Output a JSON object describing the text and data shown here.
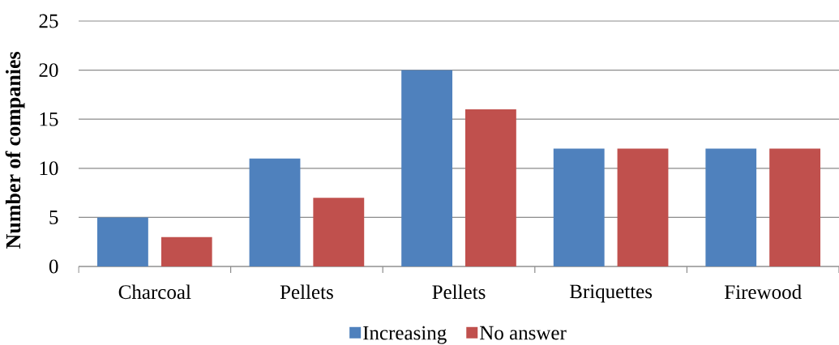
{
  "chart_data": {
    "type": "bar",
    "ylabel": "Number of companies",
    "categories": [
      "Charcoal",
      "Pellets",
      "Pellets",
      "Briquettes",
      "Firewood"
    ],
    "series": [
      {
        "name": "Increasing",
        "color": "#4f81bd",
        "values": [
          5,
          11,
          20,
          12,
          12
        ]
      },
      {
        "name": "No answer",
        "color": "#c0504d",
        "values": [
          3,
          7,
          16,
          12,
          12
        ]
      }
    ],
    "ylim": [
      0,
      25
    ],
    "yticks": [
      0,
      5,
      10,
      15,
      20,
      25
    ],
    "grid": "y",
    "legend": "bottom"
  }
}
